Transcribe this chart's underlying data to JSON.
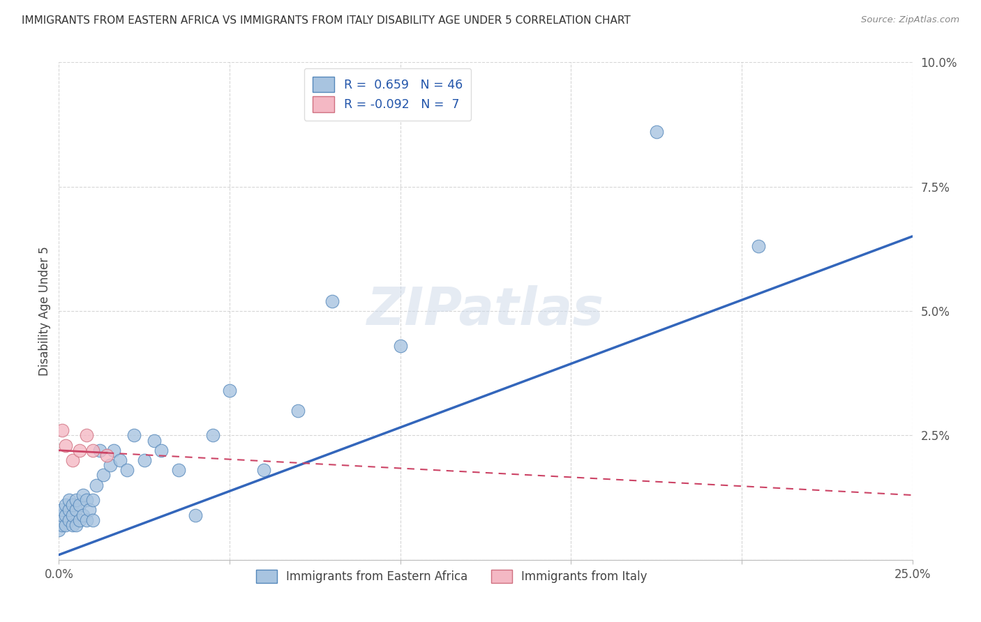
{
  "title": "IMMIGRANTS FROM EASTERN AFRICA VS IMMIGRANTS FROM ITALY DISABILITY AGE UNDER 5 CORRELATION CHART",
  "source": "Source: ZipAtlas.com",
  "ylabel": "Disability Age Under 5",
  "xlim": [
    0.0,
    0.25
  ],
  "ylim": [
    0.0,
    0.1
  ],
  "xticks": [
    0.0,
    0.05,
    0.1,
    0.15,
    0.2,
    0.25
  ],
  "yticks": [
    0.0,
    0.025,
    0.05,
    0.075,
    0.1
  ],
  "xtick_labels": [
    "0.0%",
    "",
    "",
    "",
    "",
    "25.0%"
  ],
  "ytick_labels": [
    "",
    "2.5%",
    "5.0%",
    "7.5%",
    "10.0%"
  ],
  "series1_color": "#a8c4e0",
  "series1_edge_color": "#5588bb",
  "series2_color": "#f4b8c4",
  "series2_edge_color": "#d07080",
  "line1_color": "#3366bb",
  "line2_color": "#cc4466",
  "watermark": "ZIPatlas",
  "background_color": "#ffffff",
  "scatter1_x": [
    0.0,
    0.001,
    0.001,
    0.001,
    0.002,
    0.002,
    0.002,
    0.003,
    0.003,
    0.003,
    0.004,
    0.004,
    0.004,
    0.005,
    0.005,
    0.005,
    0.006,
    0.006,
    0.007,
    0.007,
    0.008,
    0.008,
    0.009,
    0.01,
    0.01,
    0.011,
    0.012,
    0.013,
    0.015,
    0.016,
    0.018,
    0.02,
    0.022,
    0.025,
    0.028,
    0.03,
    0.035,
    0.04,
    0.045,
    0.05,
    0.06,
    0.07,
    0.08,
    0.1,
    0.175,
    0.205
  ],
  "scatter1_y": [
    0.006,
    0.007,
    0.009,
    0.01,
    0.007,
    0.009,
    0.011,
    0.008,
    0.01,
    0.012,
    0.007,
    0.009,
    0.011,
    0.007,
    0.01,
    0.012,
    0.008,
    0.011,
    0.009,
    0.013,
    0.008,
    0.012,
    0.01,
    0.008,
    0.012,
    0.015,
    0.022,
    0.017,
    0.019,
    0.022,
    0.02,
    0.018,
    0.025,
    0.02,
    0.024,
    0.022,
    0.018,
    0.009,
    0.025,
    0.034,
    0.018,
    0.03,
    0.052,
    0.043,
    0.086,
    0.063
  ],
  "scatter2_x": [
    0.001,
    0.002,
    0.004,
    0.006,
    0.008,
    0.01,
    0.014
  ],
  "scatter2_y": [
    0.026,
    0.023,
    0.02,
    0.022,
    0.025,
    0.022,
    0.021
  ],
  "line1_x0": 0.0,
  "line1_x1": 0.25,
  "line1_y0": 0.001,
  "line1_y1": 0.065,
  "line2_x0": 0.0,
  "line2_x1": 0.25,
  "line2_y0": 0.022,
  "line2_y1": 0.013
}
